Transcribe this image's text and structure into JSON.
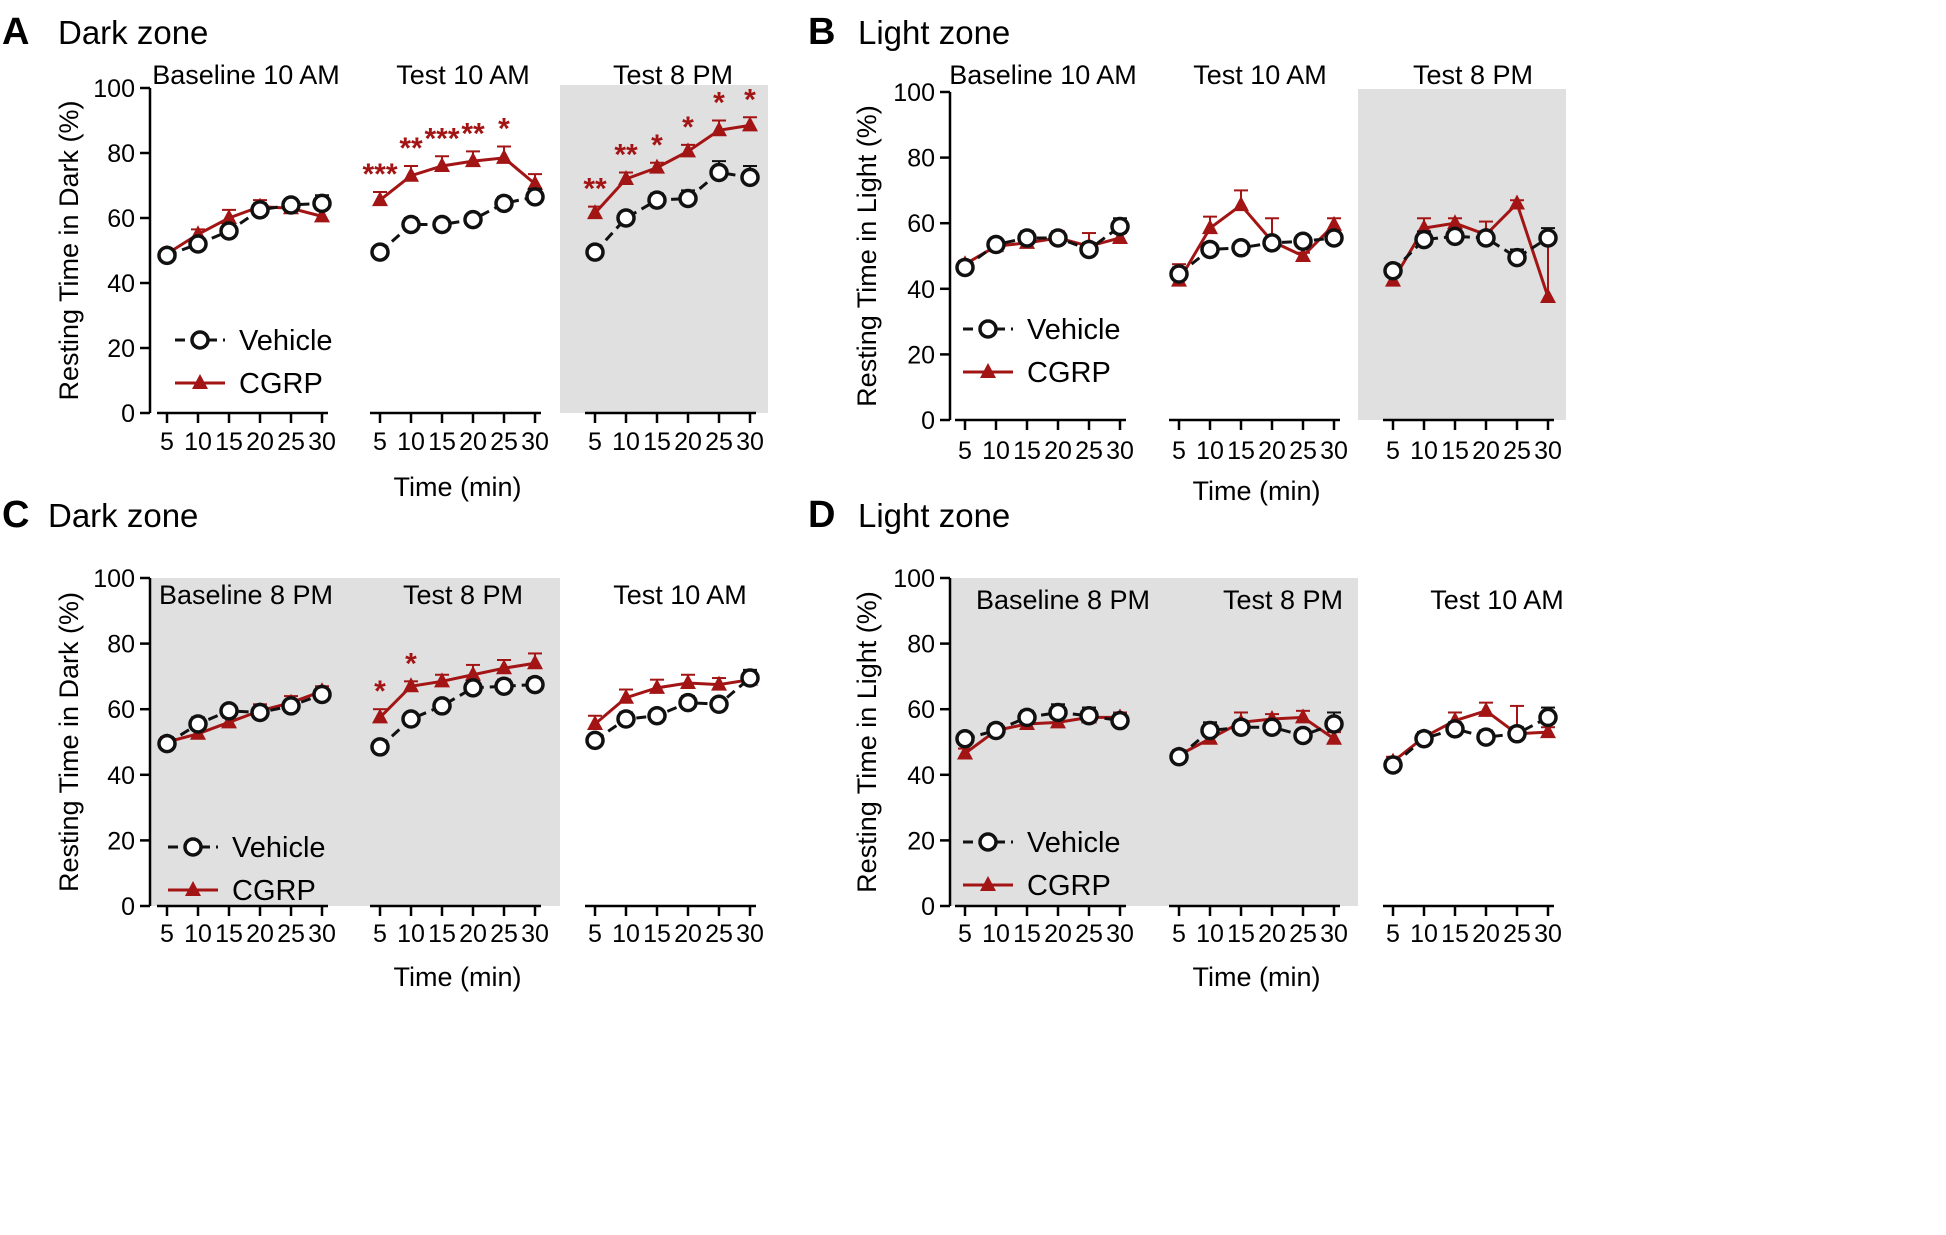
{
  "figure": {
    "x_axis_title": "Time (min)",
    "x_ticks": [
      "5",
      "10",
      "15",
      "20",
      "25",
      "30"
    ],
    "y_ticks": [
      "0",
      "20",
      "40",
      "60",
      "80",
      "100"
    ],
    "colors": {
      "vehicle": "#111111",
      "cgrp": "#a31515",
      "shade": "#e0e0e0",
      "axis": "#000000"
    }
  },
  "chart_data": [
    {
      "panel": "A",
      "type": "line",
      "title": "Dark zone",
      "ylabel": "Resting Time in Dark (%)",
      "xlabel": "Time (min)",
      "ylim": [
        0,
        100
      ],
      "legend": {
        "position": "bottom-left",
        "entries": [
          "Vehicle",
          "CGRP"
        ]
      },
      "segments": [
        {
          "label": "Baseline 10 AM",
          "shaded": false,
          "x": [
            5,
            10,
            15,
            20,
            25,
            30
          ],
          "series": [
            {
              "name": "Vehicle",
              "values": [
                48.5,
                52,
                56,
                62.5,
                64,
                64.5
              ],
              "err": [
                1.5,
                1.5,
                1.5,
                2,
                1.5,
                2.5
              ]
            },
            {
              "name": "CGRP",
              "values": [
                49,
                55,
                60,
                63.5,
                63,
                60.5
              ],
              "err": [
                1,
                1.5,
                2.5,
                2,
                1.5,
                2.5
              ]
            }
          ],
          "stars": [
            "",
            "",
            "",
            "",
            "",
            ""
          ]
        },
        {
          "label": "Test 10 AM",
          "shaded": false,
          "x": [
            5,
            10,
            15,
            20,
            25,
            30
          ],
          "series": [
            {
              "name": "Vehicle",
              "values": [
                49.5,
                58,
                58,
                59.5,
                64.5,
                66.5
              ],
              "err": [
                1,
                2,
                1,
                1,
                2,
                2.5
              ]
            },
            {
              "name": "CGRP",
              "values": [
                65.5,
                73,
                76,
                77.5,
                78.5,
                70.5
              ],
              "err": [
                2.5,
                3,
                3,
                3,
                3.5,
                3
              ]
            }
          ],
          "stars": [
            "***",
            "**",
            "***",
            "**",
            "*",
            ""
          ]
        },
        {
          "label": "Test 8 PM",
          "shaded": true,
          "x": [
            5,
            10,
            15,
            20,
            25,
            30
          ],
          "series": [
            {
              "name": "Vehicle",
              "values": [
                49.5,
                60,
                65.5,
                66,
                74,
                72.5
              ],
              "err": [
                1.5,
                1.5,
                2,
                2.5,
                3.5,
                3.5
              ]
            },
            {
              "name": "CGRP",
              "values": [
                61.5,
                72,
                75.5,
                80.5,
                87,
                88.5
              ],
              "err": [
                2,
                2,
                1.5,
                2,
                3,
                2.5
              ]
            }
          ],
          "stars": [
            "**",
            "**",
            "*",
            "*",
            "*",
            "*"
          ]
        }
      ]
    },
    {
      "panel": "B",
      "type": "line",
      "title": "Light zone",
      "ylabel": "Resting Time in Light (%)",
      "xlabel": "Time (min)",
      "ylim": [
        0,
        100
      ],
      "legend": {
        "position": "bottom-left",
        "entries": [
          "Vehicle",
          "CGRP"
        ]
      },
      "segments": [
        {
          "label": "Baseline 10 AM",
          "shaded": false,
          "x": [
            5,
            10,
            15,
            20,
            25,
            30
          ],
          "series": [
            {
              "name": "Vehicle",
              "values": [
                46.5,
                53.5,
                55.5,
                55.5,
                52,
                59
              ],
              "err": [
                1.5,
                1.5,
                2,
                1.5,
                2,
                2.5
              ]
            },
            {
              "name": "CGRP",
              "values": [
                47.5,
                53,
                54,
                55.5,
                53,
                55.5
              ],
              "err": [
                1,
                1.5,
                1.5,
                2,
                4,
                1.5
              ]
            }
          ],
          "stars": [
            "",
            "",
            "",
            "",
            "",
            ""
          ]
        },
        {
          "label": "Test 10 AM",
          "shaded": false,
          "x": [
            5,
            10,
            15,
            20,
            25,
            30
          ],
          "series": [
            {
              "name": "Vehicle",
              "values": [
                44.5,
                52,
                52.5,
                54,
                54.5,
                55.5
              ],
              "err": [
                2,
                1.5,
                1,
                1.5,
                1.5,
                1.5
              ]
            },
            {
              "name": "CGRP",
              "values": [
                42.5,
                58.5,
                65.5,
                54.5,
                50,
                59.5
              ],
              "err": [
                5,
                3.5,
                4.5,
                7,
                1,
                2
              ]
            }
          ],
          "stars": [
            "",
            "",
            "",
            "",
            "",
            ""
          ]
        },
        {
          "label": "Test 8 PM",
          "shaded": true,
          "x": [
            5,
            10,
            15,
            20,
            25,
            30
          ],
          "series": [
            {
              "name": "Vehicle",
              "values": [
                45.5,
                55,
                56,
                55.5,
                49.5,
                55.5
              ],
              "err": [
                1.5,
                2.5,
                1.5,
                2,
                2.5,
                3
              ]
            },
            {
              "name": "CGRP",
              "values": [
                42.5,
                58.5,
                60,
                56.5,
                66,
                37.5
              ],
              "err": [
                2,
                3,
                1.5,
                4,
                1,
                19
              ]
            }
          ],
          "stars": [
            "",
            "",
            "",
            "",
            "",
            ""
          ]
        }
      ]
    },
    {
      "panel": "C",
      "type": "line",
      "title": "Dark zone",
      "ylabel": "Resting Time in Dark (%)",
      "xlabel": "Time (min)",
      "ylim": [
        0,
        100
      ],
      "legend": {
        "position": "bottom-left",
        "entries": [
          "Vehicle",
          "CGRP"
        ]
      },
      "segments": [
        {
          "label": "Baseline 8 PM",
          "shaded": true,
          "x": [
            5,
            10,
            15,
            20,
            25,
            30
          ],
          "series": [
            {
              "name": "Vehicle",
              "values": [
                49.5,
                55.5,
                59.5,
                59,
                61,
                64.5
              ],
              "err": [
                1.5,
                2,
                1.5,
                1.5,
                1.5,
                1.5
              ]
            },
            {
              "name": "CGRP",
              "values": [
                50,
                52.5,
                56,
                59.5,
                62,
                65.5
              ],
              "err": [
                1.5,
                1.5,
                1.5,
                2,
                2,
                1.5
              ]
            }
          ],
          "stars": [
            "",
            "",
            "",
            "",
            "",
            ""
          ]
        },
        {
          "label": "Test 8 PM",
          "shaded": true,
          "x": [
            5,
            10,
            15,
            20,
            25,
            30
          ],
          "series": [
            {
              "name": "Vehicle",
              "values": [
                48.5,
                57,
                61,
                66.5,
                67,
                67.5
              ],
              "err": [
                1,
                1.5,
                1.5,
                2,
                2,
                2
              ]
            },
            {
              "name": "CGRP",
              "values": [
                57.5,
                67,
                68.5,
                70.5,
                72.5,
                74
              ],
              "err": [
                2.5,
                1.5,
                2,
                3,
                2.5,
                3
              ]
            }
          ],
          "stars": [
            "*",
            "*",
            "",
            "",
            "",
            ""
          ]
        },
        {
          "label": "Test 10 AM",
          "shaded": false,
          "x": [
            5,
            10,
            15,
            20,
            25,
            30
          ],
          "series": [
            {
              "name": "Vehicle",
              "values": [
                50.5,
                57,
                58,
                62,
                61.5,
                69.5
              ],
              "err": [
                1.5,
                2,
                1.5,
                2,
                1.5,
                2.5
              ]
            },
            {
              "name": "CGRP",
              "values": [
                55.5,
                63.5,
                66.5,
                68,
                67.5,
                69
              ],
              "err": [
                2.5,
                2.5,
                2.5,
                2.5,
                2,
                2.5
              ]
            }
          ],
          "stars": [
            "",
            "",
            "",
            "",
            "",
            ""
          ]
        }
      ]
    },
    {
      "panel": "D",
      "type": "line",
      "title": "Light zone",
      "ylabel": "Resting Time in Light (%)",
      "xlabel": "Time (min)",
      "ylim": [
        0,
        100
      ],
      "legend": {
        "position": "bottom-left",
        "entries": [
          "Vehicle",
          "CGRP"
        ]
      },
      "segments": [
        {
          "label": "Baseline 8 PM",
          "shaded": true,
          "x": [
            5,
            10,
            15,
            20,
            25,
            30
          ],
          "series": [
            {
              "name": "Vehicle",
              "values": [
                51,
                53.5,
                57.5,
                59,
                58,
                56.5
              ],
              "err": [
                1.5,
                2,
                2,
                2.5,
                2.5,
                2
              ]
            },
            {
              "name": "CGRP",
              "values": [
                46.5,
                53.5,
                55.5,
                56,
                57.5,
                57.5
              ],
              "err": [
                1.5,
                1.5,
                1.5,
                1.5,
                2,
                1.5
              ]
            }
          ],
          "stars": [
            "",
            "",
            "",
            "",
            "",
            ""
          ]
        },
        {
          "label": "Test 8 PM",
          "shaded": true,
          "x": [
            5,
            10,
            15,
            20,
            25,
            30
          ],
          "series": [
            {
              "name": "Vehicle",
              "values": [
                45.5,
                53.5,
                54.5,
                54.5,
                52,
                55.5
              ],
              "err": [
                1.5,
                2.5,
                2,
                1.5,
                1.5,
                3.5
              ]
            },
            {
              "name": "CGRP",
              "values": [
                46,
                51,
                56,
                57,
                57.5,
                51
              ],
              "err": [
                1.5,
                1.5,
                3,
                1.5,
                2,
                2
              ]
            }
          ],
          "stars": [
            "",
            "",
            "",
            "",
            "",
            ""
          ]
        },
        {
          "label": "Test 10 AM",
          "shaded": false,
          "x": [
            5,
            10,
            15,
            20,
            25,
            30
          ],
          "series": [
            {
              "name": "Vehicle",
              "values": [
                43,
                51,
                54,
                51.5,
                52.5,
                57.5
              ],
              "err": [
                1.5,
                2,
                2,
                2,
                2,
                3
              ]
            },
            {
              "name": "CGRP",
              "values": [
                44,
                51.5,
                56.5,
                59.5,
                52.5,
                53
              ],
              "err": [
                1.5,
                1.5,
                2.5,
                2.5,
                8.5,
                1.5
              ]
            }
          ],
          "stars": [
            "",
            "",
            "",
            "",
            "",
            ""
          ]
        }
      ]
    }
  ]
}
